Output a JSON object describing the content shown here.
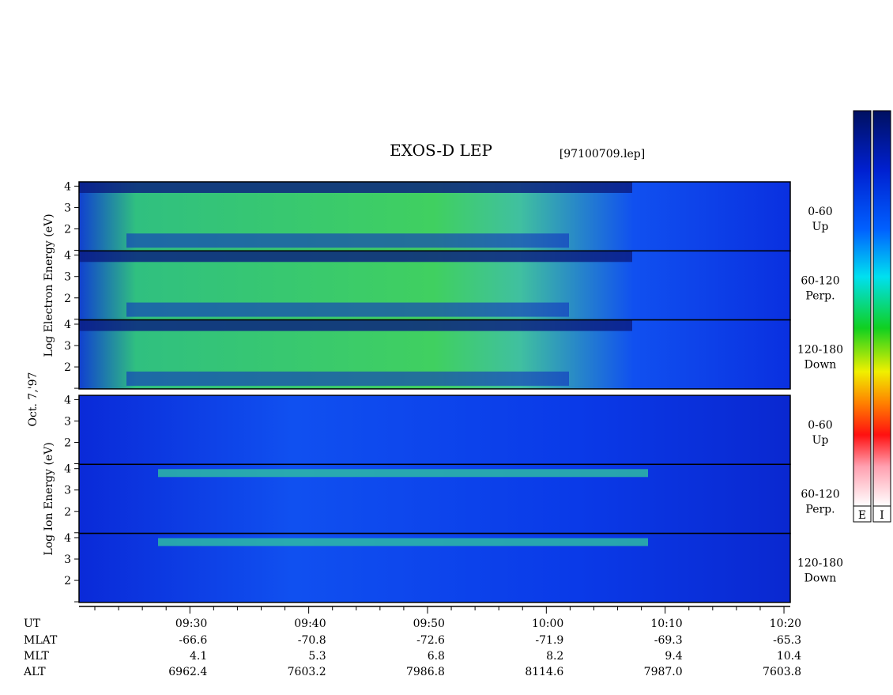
{
  "title": "EXOS-D LEP",
  "file": "[97100709.lep]",
  "date": "Oct. 7,'97",
  "groups": [
    {
      "ylabel": "Log Electron Energy (eV)",
      "panels": [
        {
          "angle": "0-60",
          "dir": "Up"
        },
        {
          "angle": "60-120",
          "dir": "Perp."
        },
        {
          "angle": "120-180",
          "dir": "Down"
        }
      ]
    },
    {
      "ylabel": "Log Ion Energy (eV)",
      "panels": [
        {
          "angle": "0-60",
          "dir": "Up"
        },
        {
          "angle": "60-120",
          "dir": "Perp."
        },
        {
          "angle": "120-180",
          "dir": "Down"
        }
      ]
    }
  ],
  "energy_axis": {
    "ylim": [
      0.97,
      4.2
    ],
    "yticks": [
      2,
      3,
      4
    ],
    "yminor": [
      1
    ]
  },
  "time_axis": {
    "xlim": [
      560.67,
      620.53
    ],
    "xticks": [
      {
        "value": 570,
        "label": "09:30"
      },
      {
        "value": 580,
        "label": "09:40"
      },
      {
        "value": 590,
        "label": "09:50"
      },
      {
        "value": 600,
        "label": "10:00"
      },
      {
        "value": 610,
        "label": "10:10"
      },
      {
        "value": 620,
        "label": "10:20"
      }
    ],
    "xminor": [
      562,
      564,
      566,
      568,
      572,
      574,
      576,
      578,
      582,
      584,
      586,
      588,
      592,
      594,
      596,
      598,
      602,
      604,
      606,
      608,
      612,
      614,
      616,
      618
    ]
  },
  "orbit": {
    "ut_label": "UT",
    "rows": [
      {
        "name": "MLAT",
        "values": [
          "-66.6",
          "-70.8",
          "-72.6",
          "-71.9",
          "-69.3",
          "-65.3"
        ]
      },
      {
        "name": "MLT",
        "values": [
          "4.1",
          "5.3",
          "6.8",
          "8.2",
          "9.4",
          "10.4"
        ]
      },
      {
        "name": "ALT",
        "values": [
          "6962.4",
          "7603.2",
          "7986.8",
          "8114.6",
          "7987.0",
          "7603.8"
        ]
      }
    ]
  },
  "colorbars": [
    "E",
    "I"
  ]
}
